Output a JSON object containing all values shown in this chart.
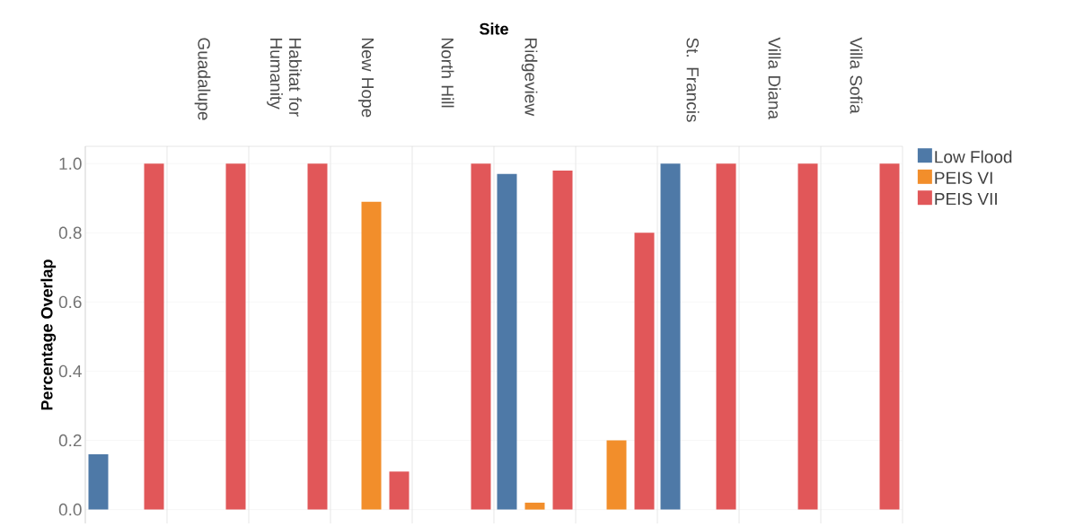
{
  "chart_data": {
    "type": "bar",
    "xlabel": "Site",
    "ylabel": "Percentage Overlap",
    "categories": [
      null,
      "Guadalupe",
      "Habitat for Humanity",
      "New Hope",
      "North Hill",
      "Ridgeview",
      null,
      "St. Francis",
      "Villa Diana",
      "Villa Sofia"
    ],
    "series": [
      {
        "name": "Low Flood",
        "color": "#4e79a7",
        "values": [
          0.16,
          null,
          null,
          null,
          null,
          0.97,
          null,
          1.0,
          null,
          null
        ]
      },
      {
        "name": "PEIS VI",
        "color": "#f28e2b",
        "values": [
          null,
          null,
          null,
          0.89,
          null,
          0.02,
          0.2,
          null,
          null,
          null
        ]
      },
      {
        "name": "PEIS VII",
        "color": "#e15759",
        "values": [
          1.0,
          1.0,
          1.0,
          0.11,
          1.0,
          0.98,
          0.8,
          1.0,
          1.0,
          1.0
        ]
      }
    ],
    "ylim": [
      -0.04,
      1.05
    ],
    "yticks": [
      {
        "value": 0,
        "label": "0.0"
      },
      {
        "value": 0.2,
        "label": "0.2"
      },
      {
        "value": 0.4,
        "label": "0.4"
      },
      {
        "value": 0.6,
        "label": "0.6"
      },
      {
        "value": 0.8,
        "label": "0.8"
      },
      {
        "value": 1,
        "label": "1.0"
      }
    ],
    "grid": "y",
    "legend": "top right"
  }
}
